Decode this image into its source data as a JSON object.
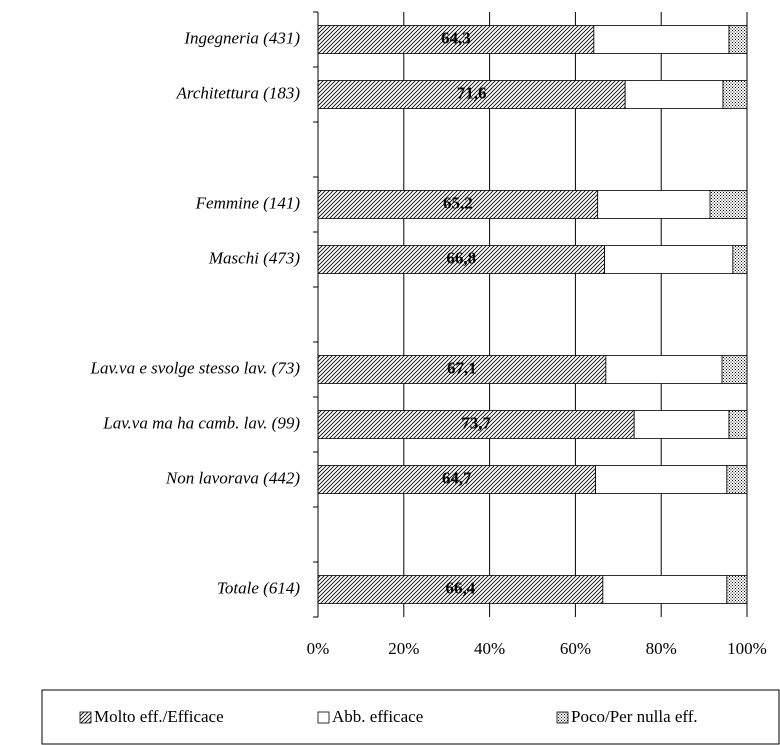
{
  "chart_data": {
    "type": "stacked-barh",
    "categories": [
      "Ingegneria (431)",
      "Architettura (183)",
      null,
      "Femmine (141)",
      "Maschi (473)",
      null,
      "Lav.va e svolge stesso lav. (73)",
      "Lav.va ma ha camb. lav. (99)",
      "Non lavorava (442)",
      null,
      "Totale (614)"
    ],
    "series": [
      {
        "name": "Molto eff./Efficace",
        "pattern": "hatch",
        "values": [
          64.3,
          71.6,
          null,
          65.2,
          66.8,
          null,
          67.1,
          73.7,
          64.7,
          null,
          66.4
        ],
        "value_labels": [
          "64,3",
          "71,6",
          null,
          "65,2",
          "66,8",
          null,
          "67,1",
          "73,7",
          "64,7",
          null,
          "66,4"
        ]
      },
      {
        "name": "Abb. efficace",
        "pattern": "none",
        "values": [
          31.5,
          22.8,
          null,
          26.2,
          29.9,
          null,
          27.1,
          22.1,
          30.6,
          null,
          28.9
        ]
      },
      {
        "name": "Poco/Per nulla eff.",
        "pattern": "dots",
        "values": [
          4.2,
          5.6,
          null,
          8.6,
          3.3,
          null,
          5.8,
          4.2,
          4.7,
          null,
          4.7
        ]
      }
    ],
    "xlim": [
      0,
      100
    ],
    "xticks": [
      {
        "value": 0,
        "label": "0%"
      },
      {
        "value": 20,
        "label": "20%"
      },
      {
        "value": 40,
        "label": "40%"
      },
      {
        "value": 60,
        "label": "60%"
      },
      {
        "value": 80,
        "label": "80%"
      },
      {
        "value": 100,
        "label": "100%"
      }
    ],
    "grid": true,
    "legend": "bottom"
  }
}
